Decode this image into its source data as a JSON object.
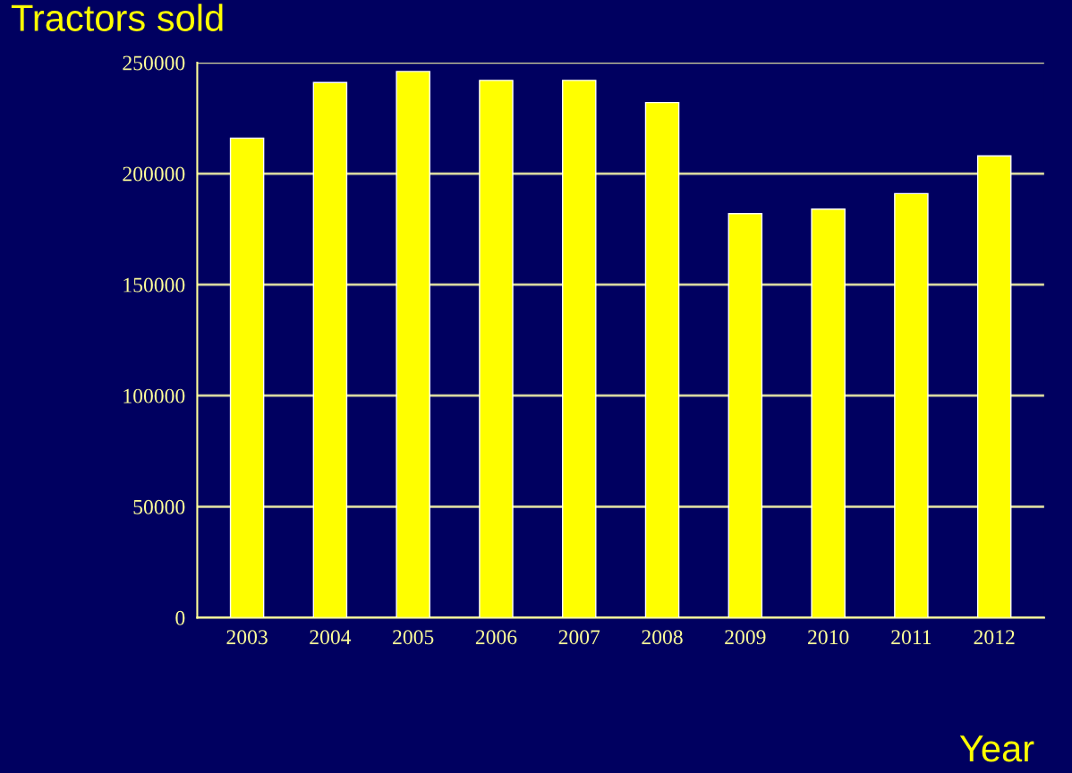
{
  "chart_data": {
    "type": "bar",
    "title": "Tractors sold",
    "xlabel": "Year",
    "categories": [
      "2003",
      "2004",
      "2005",
      "2006",
      "2007",
      "2008",
      "2009",
      "2010",
      "2011",
      "2012"
    ],
    "values": [
      216000,
      241000,
      246000,
      242000,
      242000,
      232000,
      182000,
      184000,
      191000,
      208000
    ],
    "color": "#ffff00",
    "ylim": [
      0,
      250000
    ],
    "yticks": [
      0,
      50000,
      100000,
      150000,
      200000,
      250000
    ],
    "grid": "y",
    "legend": false
  }
}
